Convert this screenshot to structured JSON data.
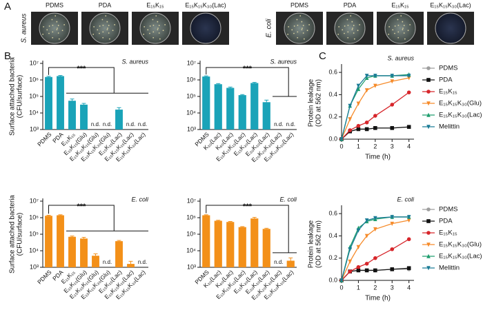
{
  "figure": {
    "panel_labels": [
      "A",
      "B",
      "C"
    ],
    "photo_groups": [
      {
        "strain": "S. aureus",
        "labels": [
          "PDMS",
          "PDA",
          "E₁₅K₁₅",
          "E₁₅K₁₅K₃₀(Lac)"
        ]
      },
      {
        "strain": "E. coli",
        "labels": [
          "PDMS",
          "PDA",
          "E₁₅K₁₅",
          "E₁₅K₁₅K₃₀(Lac)"
        ]
      }
    ]
  },
  "chart_data": [
    {
      "type": "bar",
      "subtitle": "S. aureus",
      "y_label": [
        "Surface attached bacteria",
        "(CFU/surface)"
      ],
      "significance": "***",
      "categories": [
        "PDMS",
        "PDA",
        "E₁₅K₁₅",
        "E₁₅K₁₅(Glu)",
        "E₁₅K₁₅K₁₅(Glu)",
        "E₁₅K₁₅K₃₀(Glu)",
        "E₁₅K₁₅(Lac)",
        "E₁₅K₁₅K₁₅(Lac)",
        "E₁₅K₁₅K₃₀(Lac)"
      ],
      "values": [
        1500000,
        1700000,
        55000,
        32000,
        null,
        null,
        16000,
        null,
        null
      ],
      "errors": [
        150000,
        150000,
        15000,
        6000,
        null,
        null,
        5000,
        null,
        null
      ],
      "value_labels": [
        null,
        null,
        null,
        null,
        "n.d.",
        "n.d.",
        null,
        "n.d.",
        "n.d."
      ],
      "color": "#1aa3b8",
      "log_scale": true,
      "ylim": [
        1000,
        10000000
      ],
      "yticks": [
        {
          "value": 1000,
          "label": "10³"
        },
        {
          "value": 10000,
          "label": "10⁴"
        },
        {
          "value": 100000,
          "label": "10⁵"
        },
        {
          "value": 1000000,
          "label": "10⁶"
        },
        {
          "value": 10000000,
          "label": "10⁷"
        }
      ]
    },
    {
      "type": "bar",
      "subtitle": "S. aureus",
      "significance": "***",
      "categories": [
        "PDMS",
        "K₃₀(Lac)",
        "K₆₀(Lac)",
        "E₁₅K₁₅K₁₅(Lac)",
        "E₁₅K₃₀(Lac)",
        "E₃₀K₃₀(Lac)",
        "E₂₀K₂₀K₃₀(Lac)",
        "E₁₀K₁₀K₃₀(Lac)"
      ],
      "values": [
        1600000,
        550000,
        330000,
        120000,
        650000,
        45000,
        null,
        null
      ],
      "errors": [
        150000,
        50000,
        40000,
        10000,
        60000,
        15000,
        null,
        null
      ],
      "value_labels": [
        null,
        null,
        null,
        null,
        null,
        null,
        "n.d.",
        "n.d."
      ],
      "color": "#1aa3b8",
      "log_scale": true,
      "ylim": [
        1000,
        10000000
      ],
      "yticks": [
        {
          "value": 1000,
          "label": "10³"
        },
        {
          "value": 10000,
          "label": "10⁴"
        },
        {
          "value": 100000,
          "label": "10⁵"
        },
        {
          "value": 1000000,
          "label": "10⁶"
        },
        {
          "value": 10000000,
          "label": "10⁷"
        }
      ]
    },
    {
      "type": "bar",
      "subtitle": "E. coli",
      "y_label": [
        "Surface attached bacteria",
        "(CFU/surface)"
      ],
      "significance": "***",
      "categories": [
        "PDMS",
        "PDA",
        "E₁₅K₁₅",
        "E₁₅K₁₅(Glu)",
        "E₁₅K₁₅K₁₅(Glu)",
        "E₁₅K₁₅K₃₀(Glu)",
        "E₁₅K₁₅(Lac)",
        "E₁₅K₁₅K₁₅(Lac)",
        "E₁₅K₁₅K₃₀(Lac)"
      ],
      "values": [
        1300000,
        1400000,
        70000,
        55000,
        5000,
        null,
        38000,
        1600,
        null
      ],
      "errors": [
        100000,
        100000,
        8000,
        10000,
        1500,
        null,
        4000,
        700,
        null
      ],
      "value_labels": [
        null,
        null,
        null,
        null,
        null,
        "n.d.",
        null,
        null,
        "n.d."
      ],
      "color": "#f39019",
      "log_scale": true,
      "ylim": [
        1000,
        10000000
      ],
      "yticks": [
        {
          "value": 1000,
          "label": "10³"
        },
        {
          "value": 10000,
          "label": "10⁴"
        },
        {
          "value": 100000,
          "label": "10⁵"
        },
        {
          "value": 1000000,
          "label": "10⁶"
        },
        {
          "value": 10000000,
          "label": "10⁷"
        }
      ]
    },
    {
      "type": "bar",
      "subtitle": "E. coli",
      "significance": "***",
      "categories": [
        "PDMS",
        "K₃₀(Lac)",
        "K₆₀(Lac)",
        "E₁₅K₁₅K₁₅(Lac)",
        "E₁₅K₃₀(Lac)",
        "E₃₀K₃₀(Lac)",
        "E₂₀K₂₀K₃₀(Lac)",
        "E₁₀K₁₀K₃₀(Lac)"
      ],
      "values": [
        1400000,
        650000,
        550000,
        270000,
        900000,
        210000,
        null,
        2500
      ],
      "errors": [
        100000,
        50000,
        40000,
        20000,
        150000,
        20000,
        null,
        1200
      ],
      "value_labels": [
        null,
        null,
        null,
        null,
        null,
        null,
        "n.d.",
        null
      ],
      "color": "#f39019",
      "log_scale": true,
      "ylim": [
        1000,
        10000000
      ],
      "yticks": [
        {
          "value": 1000,
          "label": "10³"
        },
        {
          "value": 10000,
          "label": "10⁴"
        },
        {
          "value": 100000,
          "label": "10⁵"
        },
        {
          "value": 1000000,
          "label": "10⁶"
        },
        {
          "value": 10000000,
          "label": "10⁷"
        }
      ]
    },
    {
      "type": "line",
      "subtitle": "S. aureus",
      "x_label": "Time (h)",
      "y_label": [
        "Protein leakage",
        "(OD at 562 nm)"
      ],
      "x": [
        0,
        0.5,
        1,
        1.5,
        2,
        3,
        4
      ],
      "xlim": [
        0,
        4.3
      ],
      "xticks": [
        0,
        1,
        2,
        3,
        4
      ],
      "ylim": [
        0,
        0.65
      ],
      "yticks": [
        {
          "value": 0,
          "label": "0.0"
        },
        0.2,
        0.4,
        0.6
      ],
      "legend": "right",
      "series": [
        {
          "name": "PDMS",
          "color": "#9e9e9e",
          "marker": "circle",
          "values": [
            0,
            0.07,
            0.09,
            0.09,
            0.1,
            0.1,
            0.11
          ]
        },
        {
          "name": "PDA",
          "color": "#111111",
          "marker": "square",
          "values": [
            0,
            0.07,
            0.09,
            0.09,
            0.1,
            0.1,
            0.11
          ]
        },
        {
          "name": "E₁₅K₁₅",
          "color": "#d7262b",
          "marker": "circle",
          "values": [
            0,
            0.08,
            0.12,
            0.15,
            0.21,
            0.31,
            0.42
          ]
        },
        {
          "name": "E₁₅K₁₅K₃₀(Glu)",
          "color": "#f68b2a",
          "marker": "triangle-down",
          "values": [
            0,
            0.18,
            0.32,
            0.44,
            0.48,
            0.52,
            0.55
          ]
        },
        {
          "name": "E₁₅K₁₅K₃₀(Lac)",
          "color": "#1f9e6e",
          "marker": "triangle",
          "values": [
            0,
            0.3,
            0.45,
            0.55,
            0.57,
            0.57,
            0.58
          ]
        },
        {
          "name": "Melittin",
          "color": "#1b7c96",
          "marker": "triangle-down",
          "values": [
            0,
            0.3,
            0.48,
            0.57,
            0.57,
            0.57,
            0.57
          ]
        }
      ]
    },
    {
      "type": "line",
      "subtitle": "E. coli",
      "x_label": "Time (h)",
      "y_label": [
        "Protein leakage",
        "(OD at 562 nm)"
      ],
      "x": [
        0,
        0.5,
        1,
        1.5,
        2,
        3,
        4
      ],
      "xlim": [
        0,
        4.3
      ],
      "xticks": [
        0,
        1,
        2,
        3,
        4
      ],
      "ylim": [
        0,
        0.65
      ],
      "yticks": [
        {
          "value": 0,
          "label": "0.0"
        },
        0.2,
        0.4,
        0.6
      ],
      "legend": "right",
      "series": [
        {
          "name": "PDMS",
          "color": "#9e9e9e",
          "marker": "circle",
          "values": [
            0,
            0.08,
            0.09,
            0.09,
            0.09,
            0.1,
            0.1
          ]
        },
        {
          "name": "PDA",
          "color": "#111111",
          "marker": "square",
          "values": [
            0,
            0.08,
            0.09,
            0.09,
            0.09,
            0.1,
            0.11
          ]
        },
        {
          "name": "E₁₅K₁₅",
          "color": "#d7262b",
          "marker": "circle",
          "values": [
            0,
            0.08,
            0.12,
            0.15,
            0.2,
            0.28,
            0.37
          ]
        },
        {
          "name": "E₁₅K₁₅K₃₀(Glu)",
          "color": "#f68b2a",
          "marker": "triangle-down",
          "values": [
            0,
            0.17,
            0.3,
            0.4,
            0.46,
            0.51,
            0.54
          ]
        },
        {
          "name": "E₁₅K₁₅K₃₀(Lac)",
          "color": "#1f9e6e",
          "marker": "triangle",
          "values": [
            0,
            0.3,
            0.47,
            0.53,
            0.55,
            0.57,
            0.57
          ]
        },
        {
          "name": "Melittin",
          "color": "#1b7c96",
          "marker": "triangle-down",
          "values": [
            0,
            0.28,
            0.45,
            0.54,
            0.56,
            0.57,
            0.57
          ]
        }
      ]
    }
  ]
}
